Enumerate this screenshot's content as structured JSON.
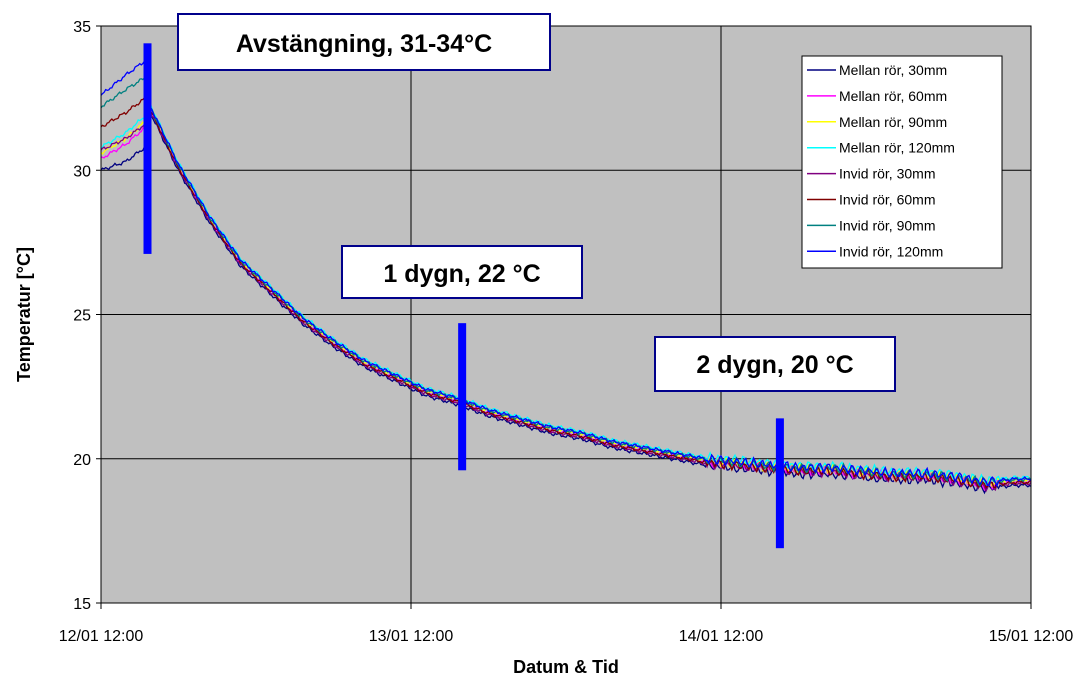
{
  "chart_data": {
    "type": "line",
    "xlabel": "Datum & Tid",
    "ylabel": "Temperatur [°C]",
    "x_range_days": [
      0,
      3
    ],
    "x_ticks": [
      {
        "day": 0,
        "label": "12/01 12:00"
      },
      {
        "day": 1,
        "label": "13/01 12:00"
      },
      {
        "day": 2,
        "label": "14/01 12:00"
      },
      {
        "day": 3,
        "label": "15/01 12:00"
      }
    ],
    "ylim": [
      15,
      35
    ],
    "y_ticks": [
      15,
      20,
      25,
      30,
      35
    ],
    "grid": true,
    "plot_background": "#c0c0c0",
    "legend_position": "top-right",
    "series": [
      {
        "name": "Mellan rör, 30mm",
        "color": "#000080",
        "start": [
          [
            0,
            30.0
          ],
          [
            0.08,
            30.3
          ],
          [
            0.155,
            30.9
          ]
        ],
        "offset": -0.12
      },
      {
        "name": "Mellan rör, 60mm",
        "color": "#ff00ff",
        "start": [
          [
            0,
            30.4
          ],
          [
            0.08,
            30.9
          ],
          [
            0.155,
            31.6
          ]
        ],
        "offset": 0.0
      },
      {
        "name": "Mellan rör, 90mm",
        "color": "#ffff00",
        "start": [
          [
            0,
            30.6
          ],
          [
            0.08,
            31.1
          ],
          [
            0.155,
            31.8
          ]
        ],
        "offset": 0.05
      },
      {
        "name": "Mellan rör, 120mm",
        "color": "#00ffff",
        "start": [
          [
            0,
            30.8
          ],
          [
            0.08,
            31.3
          ],
          [
            0.155,
            32.0
          ]
        ],
        "offset": 0.15
      },
      {
        "name": "Invid rör, 30mm",
        "color": "#800080",
        "start": [
          [
            0,
            30.7
          ],
          [
            0.08,
            31.1
          ],
          [
            0.155,
            31.7
          ]
        ],
        "offset": -0.05
      },
      {
        "name": "Invid rör, 60mm",
        "color": "#800000",
        "start": [
          [
            0,
            31.5
          ],
          [
            0.08,
            32.0
          ],
          [
            0.155,
            32.6
          ]
        ],
        "offset": -0.02
      },
      {
        "name": "Invid rör, 90mm",
        "color": "#008080",
        "start": [
          [
            0,
            32.2
          ],
          [
            0.08,
            32.8
          ],
          [
            0.155,
            33.3
          ]
        ],
        "offset": 0.08
      },
      {
        "name": "Invid rör, 120mm",
        "color": "#0000ff",
        "start": [
          [
            0,
            32.6
          ],
          [
            0.08,
            33.3
          ],
          [
            0.155,
            33.9
          ]
        ],
        "offset": 0.1
      }
    ],
    "common_decay": [
      [
        0.155,
        32.2
      ],
      [
        0.25,
        30.1
      ],
      [
        0.35,
        28.3
      ],
      [
        0.45,
        26.8
      ],
      [
        0.55,
        25.8
      ],
      [
        0.65,
        24.8
      ],
      [
        0.75,
        24.0
      ],
      [
        0.85,
        23.3
      ],
      [
        0.95,
        22.8
      ],
      [
        1.05,
        22.3
      ],
      [
        1.15,
        22.0
      ],
      [
        1.25,
        21.6
      ],
      [
        1.35,
        21.3
      ],
      [
        1.45,
        21.0
      ],
      [
        1.55,
        20.8
      ],
      [
        1.65,
        20.5
      ],
      [
        1.75,
        20.3
      ],
      [
        1.85,
        20.1
      ],
      [
        1.95,
        19.9
      ],
      [
        2.05,
        19.8
      ],
      [
        2.15,
        19.7
      ],
      [
        2.25,
        19.6
      ],
      [
        2.35,
        19.6
      ],
      [
        2.45,
        19.5
      ],
      [
        2.55,
        19.4
      ],
      [
        2.65,
        19.4
      ],
      [
        2.75,
        19.3
      ],
      [
        2.85,
        19.1
      ],
      [
        2.95,
        19.2
      ],
      [
        3.0,
        19.2
      ]
    ],
    "markers": [
      {
        "day": 0.15,
        "y_min": 27.1,
        "y_max": 34.4,
        "color": "#0000ff"
      },
      {
        "day": 1.165,
        "y_min": 19.6,
        "y_max": 24.7,
        "color": "#0000ff"
      },
      {
        "day": 2.19,
        "y_min": 16.9,
        "y_max": 21.4,
        "color": "#0000ff"
      }
    ],
    "annotations": [
      {
        "text": "Avstängning, 31-34°C"
      },
      {
        "text": "1 dygn, 22 °C"
      },
      {
        "text": "2 dygn, 20 °C"
      }
    ]
  }
}
